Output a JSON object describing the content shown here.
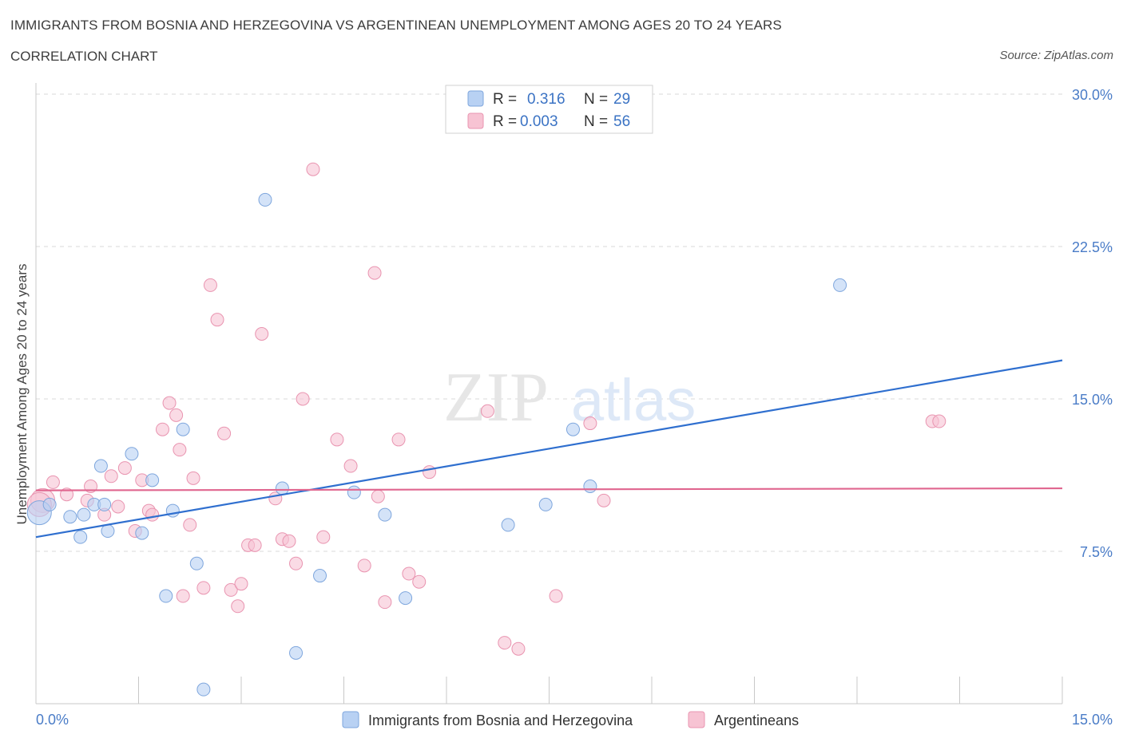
{
  "header": {
    "title": "IMMIGRANTS FROM BOSNIA AND HERZEGOVINA VS ARGENTINEAN UNEMPLOYMENT AMONG AGES 20 TO 24 YEARS",
    "subtitle": "CORRELATION CHART",
    "source": "Source: ZipAtlas.com"
  },
  "legend_box": {
    "rows": [
      {
        "r_label": "R =",
        "r_value": "0.316",
        "n_label": "N =",
        "n_value": "29"
      },
      {
        "r_label": "R =",
        "r_value": "0.003",
        "n_label": "N =",
        "n_value": "56"
      }
    ]
  },
  "watermark": {
    "zip": "ZIP",
    "atlas": "atlas"
  },
  "colors": {
    "blue_fill": "#b8d1f3",
    "blue_stroke": "#7ea6dd",
    "blue_line": "#2f6fcf",
    "pink_fill": "#f7c3d3",
    "pink_stroke": "#e994b0",
    "pink_line": "#e0668f",
    "grid": "#d9d9d9",
    "tick_text": "#4a7cc7"
  },
  "chart_data": {
    "type": "scatter",
    "title": "IMMIGRANTS FROM BOSNIA AND HERZEGOVINA VS ARGENTINEAN UNEMPLOYMENT AMONG AGES 20 TO 24 YEARS",
    "subtitle": "CORRELATION CHART",
    "xlabel": "",
    "ylabel": "Unemployment Among Ages 20 to 24 years",
    "xlim": [
      0,
      15
    ],
    "ylim": [
      0,
      30
    ],
    "x_tick_labels": [
      "0.0%",
      "15.0%"
    ],
    "y_ticks": [
      7.5,
      15.0,
      22.5,
      30.0
    ],
    "y_tick_labels": [
      "7.5%",
      "15.0%",
      "22.5%",
      "30.0%"
    ],
    "grid": "horizontal dashed",
    "legend_placement": "top-center and bottom",
    "series": [
      {
        "name": "Immigrants from Bosnia and Herzegovina",
        "color": "#b8d1f3",
        "R": 0.316,
        "N": 29,
        "trend": {
          "x": [
            0,
            15
          ],
          "y": [
            8.2,
            16.9
          ]
        },
        "points": [
          [
            0.05,
            9.4
          ],
          [
            0.2,
            9.8
          ],
          [
            0.5,
            9.2
          ],
          [
            0.7,
            9.3
          ],
          [
            0.65,
            8.2
          ],
          [
            0.85,
            9.8
          ],
          [
            0.95,
            11.7
          ],
          [
            1.0,
            9.8
          ],
          [
            1.05,
            8.5
          ],
          [
            1.4,
            12.3
          ],
          [
            1.55,
            8.4
          ],
          [
            1.7,
            11.0
          ],
          [
            1.9,
            5.3
          ],
          [
            2.0,
            9.5
          ],
          [
            2.15,
            13.5
          ],
          [
            2.35,
            6.9
          ],
          [
            2.45,
            0.7
          ],
          [
            3.35,
            24.8
          ],
          [
            3.6,
            10.6
          ],
          [
            3.8,
            2.5
          ],
          [
            4.15,
            6.3
          ],
          [
            4.65,
            10.4
          ],
          [
            5.1,
            9.3
          ],
          [
            5.4,
            5.2
          ],
          [
            6.9,
            8.8
          ],
          [
            7.45,
            9.8
          ],
          [
            7.85,
            13.5
          ],
          [
            8.1,
            10.7
          ],
          [
            11.75,
            20.6
          ]
        ]
      },
      {
        "name": "Argentineans",
        "color": "#f7c3d3",
        "R": 0.003,
        "N": 56,
        "trend": {
          "x": [
            0,
            15
          ],
          "y": [
            10.5,
            10.6
          ]
        },
        "points": [
          [
            0.1,
            10.0
          ],
          [
            0.25,
            10.9
          ],
          [
            0.45,
            10.3
          ],
          [
            0.75,
            10.0
          ],
          [
            0.8,
            10.7
          ],
          [
            1.0,
            9.3
          ],
          [
            1.1,
            11.2
          ],
          [
            1.2,
            9.7
          ],
          [
            1.3,
            11.6
          ],
          [
            1.45,
            8.5
          ],
          [
            1.55,
            11.0
          ],
          [
            1.65,
            9.5
          ],
          [
            1.7,
            9.3
          ],
          [
            1.85,
            13.5
          ],
          [
            1.95,
            14.8
          ],
          [
            2.05,
            14.2
          ],
          [
            2.1,
            12.5
          ],
          [
            2.15,
            5.3
          ],
          [
            2.25,
            8.8
          ],
          [
            2.3,
            11.1
          ],
          [
            2.45,
            5.7
          ],
          [
            2.55,
            20.6
          ],
          [
            2.65,
            18.9
          ],
          [
            2.75,
            13.3
          ],
          [
            2.85,
            5.6
          ],
          [
            2.95,
            4.8
          ],
          [
            3.0,
            5.9
          ],
          [
            3.1,
            7.8
          ],
          [
            3.2,
            7.8
          ],
          [
            3.3,
            18.2
          ],
          [
            3.5,
            10.1
          ],
          [
            3.6,
            8.1
          ],
          [
            3.7,
            8.0
          ],
          [
            3.8,
            6.9
          ],
          [
            3.9,
            15.0
          ],
          [
            4.05,
            26.3
          ],
          [
            4.2,
            8.2
          ],
          [
            4.4,
            13.0
          ],
          [
            4.6,
            11.7
          ],
          [
            4.8,
            6.8
          ],
          [
            4.95,
            21.2
          ],
          [
            5.0,
            10.2
          ],
          [
            5.1,
            5.0
          ],
          [
            5.3,
            13.0
          ],
          [
            5.45,
            6.4
          ],
          [
            5.6,
            6.0
          ],
          [
            5.75,
            11.4
          ],
          [
            6.6,
            14.4
          ],
          [
            6.85,
            3.0
          ],
          [
            7.05,
            2.7
          ],
          [
            7.6,
            5.3
          ],
          [
            8.1,
            13.8
          ],
          [
            8.3,
            10.0
          ],
          [
            13.1,
            13.9
          ],
          [
            13.2,
            13.9
          ],
          [
            0.05,
            9.8
          ]
        ]
      }
    ]
  }
}
